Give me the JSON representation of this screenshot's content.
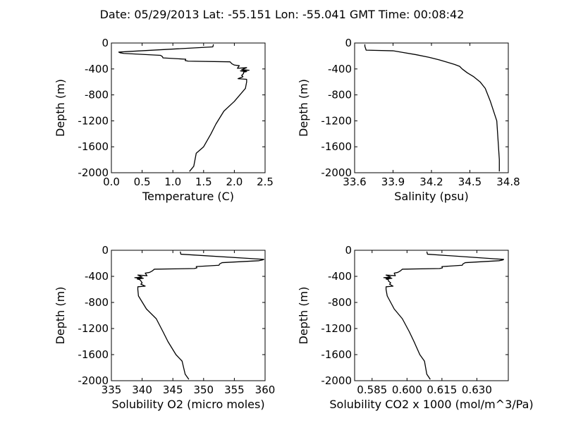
{
  "title": "Date: 05/29/2013  Lat:  -55.151 Lon:  -55.041  GMT Time: 00:08:42",
  "chart_data": [
    {
      "type": "line",
      "xlabel": "Temperature (C)",
      "ylabel": "Depth (m)",
      "xlim": [
        0.0,
        2.5
      ],
      "ylim": [
        -2000,
        0
      ],
      "xticks": [
        "0.0",
        "0.5",
        "1.0",
        "1.5",
        "2.0",
        "2.5"
      ],
      "yticks": [
        "0",
        "-400",
        "-800",
        "-1200",
        "-1600",
        "-2000"
      ],
      "grid": false,
      "series": [
        {
          "x": [
            1.66,
            1.65,
            0.3,
            0.12,
            0.14,
            0.2,
            0.8,
            0.83,
            0.84,
            1.21,
            1.2,
            1.25,
            1.93,
            1.96,
            2.0,
            2.08,
            2.05,
            2.2,
            2.12,
            2.24,
            2.1,
            2.2,
            2.15,
            2.15,
            2.12,
            2.14,
            2.06,
            2.2,
            2.2,
            2.18,
            2.0,
            1.83,
            1.7,
            1.62,
            1.5,
            1.38,
            1.34,
            1.27
          ],
          "y": [
            -20,
            -60,
            -130,
            -140,
            -150,
            -160,
            -190,
            -210,
            -230,
            -250,
            -270,
            -280,
            -290,
            -320,
            -340,
            -350,
            -390,
            -380,
            -410,
            -420,
            -430,
            -440,
            -450,
            -470,
            -500,
            -520,
            -550,
            -560,
            -600,
            -700,
            -900,
            -1050,
            -1250,
            -1400,
            -1600,
            -1700,
            -1900,
            -1980
          ]
        }
      ]
    },
    {
      "type": "line",
      "xlabel": "Salinity (psu)",
      "ylabel": "Depth (m)",
      "xlim": [
        33.6,
        34.8
      ],
      "ylim": [
        -2000,
        0
      ],
      "xticks": [
        "33.6",
        "33.9",
        "34.2",
        "34.5",
        "34.8"
      ],
      "yticks": [
        "0",
        "-400",
        "-800",
        "-1200",
        "-1600",
        "-2000"
      ],
      "grid": false,
      "series": [
        {
          "x": [
            33.68,
            33.68,
            33.69,
            33.9,
            33.96,
            34.08,
            34.18,
            34.26,
            34.33,
            34.38,
            34.42,
            34.44,
            34.48,
            34.53,
            34.58,
            34.62,
            34.66,
            34.71,
            34.72,
            34.73,
            34.73
          ],
          "y": [
            -20,
            -50,
            -110,
            -120,
            -140,
            -180,
            -220,
            -260,
            -300,
            -330,
            -360,
            -400,
            -460,
            -520,
            -600,
            -700,
            -900,
            -1200,
            -1500,
            -1800,
            -1980
          ]
        }
      ]
    },
    {
      "type": "line",
      "xlabel": "Solubility O2 (micro moles)",
      "ylabel": "Depth (m)",
      "xlim": [
        335,
        360
      ],
      "ylim": [
        -2000,
        0
      ],
      "xticks": [
        "335",
        "340",
        "345",
        "350",
        "355",
        "360"
      ],
      "yticks": [
        "0",
        "-400",
        "-800",
        "-1200",
        "-1600",
        "-2000"
      ],
      "grid": false,
      "series": [
        {
          "x": [
            346.2,
            346.3,
            358.2,
            359.8,
            359.5,
            359.0,
            353.0,
            352.6,
            352.5,
            348.8,
            348.9,
            348.5,
            342.0,
            341.6,
            341.2,
            340.5,
            340.8,
            339.3,
            340.0,
            338.8,
            340.2,
            339.2,
            339.6,
            339.8,
            340.0,
            339.8,
            340.5,
            339.3,
            339.3,
            339.4,
            340.7,
            342.3,
            343.4,
            344.2,
            345.5,
            346.5,
            347.0,
            347.6
          ],
          "y": [
            -20,
            -60,
            -130,
            -140,
            -150,
            -160,
            -190,
            -210,
            -230,
            -250,
            -270,
            -280,
            -290,
            -320,
            -340,
            -350,
            -390,
            -380,
            -410,
            -420,
            -430,
            -440,
            -450,
            -470,
            -500,
            -520,
            -550,
            -560,
            -600,
            -700,
            -900,
            -1050,
            -1250,
            -1400,
            -1600,
            -1700,
            -1900,
            -1980
          ]
        }
      ]
    },
    {
      "type": "line",
      "xlabel": "Solubility CO2 x 1000 (mol/m^3/Pa)",
      "ylabel": "Depth (m)",
      "xlim": [
        0.5775,
        0.6435
      ],
      "ylim": [
        -2000,
        0
      ],
      "xticks": [
        "0.585",
        "0.600",
        "0.615",
        "0.630"
      ],
      "yticks": [
        "0",
        "-400",
        "-800",
        "-1200",
        "-1600",
        "-2000"
      ],
      "grid": false,
      "series": [
        {
          "x": [
            0.6085,
            0.6088,
            0.6372,
            0.6415,
            0.641,
            0.6395,
            0.625,
            0.624,
            0.6237,
            0.615,
            0.6152,
            0.614,
            0.598,
            0.597,
            0.596,
            0.5945,
            0.595,
            0.591,
            0.593,
            0.59,
            0.5935,
            0.591,
            0.592,
            0.592,
            0.593,
            0.5925,
            0.594,
            0.591,
            0.591,
            0.5915,
            0.5945,
            0.598,
            0.601,
            0.603,
            0.6055,
            0.6075,
            0.6085,
            0.61
          ],
          "y": [
            -20,
            -60,
            -130,
            -140,
            -150,
            -160,
            -190,
            -210,
            -230,
            -250,
            -270,
            -280,
            -290,
            -320,
            -340,
            -350,
            -390,
            -380,
            -410,
            -420,
            -430,
            -440,
            -450,
            -470,
            -500,
            -520,
            -550,
            -560,
            -600,
            -700,
            -900,
            -1050,
            -1250,
            -1400,
            -1600,
            -1700,
            -1900,
            -1980
          ]
        }
      ]
    }
  ]
}
